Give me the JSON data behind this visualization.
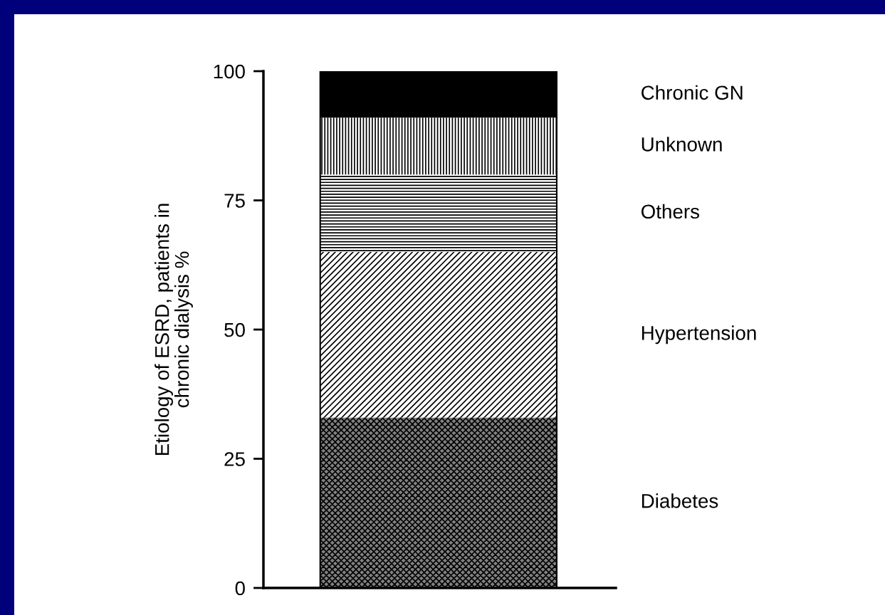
{
  "chart_data": {
    "type": "bar",
    "stacked": true,
    "categories": [
      null
    ],
    "ylabel": "Etiology of ESRD, patients in\nchronic dialysis %",
    "ylim": [
      0,
      100
    ],
    "yticks": [
      0,
      25,
      50,
      75,
      100
    ],
    "grid": false,
    "legend": false,
    "series": [
      {
        "name": "Diabetes",
        "color": "#808080",
        "values": [
          33
        ]
      },
      {
        "name": "Hypertension",
        "color": "#ffffff",
        "values": [
          32
        ]
      },
      {
        "name": "Others",
        "color": "#ffffff",
        "values": [
          15
        ]
      },
      {
        "name": "Unknown",
        "color": "#ffffff",
        "values": [
          11
        ]
      },
      {
        "name": "Chronic GN",
        "color": "#000000",
        "values": [
          9
        ]
      }
    ]
  }
}
